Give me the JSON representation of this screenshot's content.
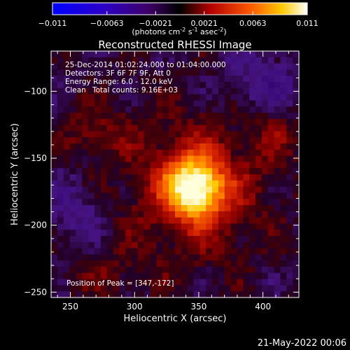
{
  "chart_data": {
    "type": "heatmap",
    "title": "Reconstructed RHESSI Image",
    "xlabel": "Heliocentric X (arcsec)",
    "ylabel": "Heliocentric Y (arcsec)",
    "xlim": [
      235,
      428
    ],
    "ylim": [
      -254,
      -70
    ],
    "x_ticks": [
      250,
      300,
      350,
      400
    ],
    "y_ticks": [
      -100,
      -150,
      -200,
      -250
    ],
    "peak_location": [
      347,
      -172
    ],
    "colorbar": {
      "range": [
        -0.011,
        0.011
      ],
      "tick_values": [
        -0.011,
        -0.0063,
        -0.0021,
        0.0021,
        0.0063,
        0.011
      ],
      "tick_labels": [
        "-0.011",
        "-0.0063",
        "-0.0021",
        "0.0021",
        "0.0063",
        "0.011"
      ],
      "unit_label_parts": [
        "(photons cm",
        "-2",
        " s",
        "-1",
        " asec",
        "-2",
        ")"
      ]
    },
    "grid": false,
    "annotations": {
      "time_range": "25-Dec-2014 01:02:24.000 to 01:04:00.000",
      "detectors": "Detectors: 3F 6F 7F 9F, Att 0",
      "energy_range": "Energy Range: 6.0 - 12.0 keV",
      "algorithm": "Clean",
      "total_counts": "Total counts: 9.16E+03",
      "peak_position": "Position of Peak = [347,-172]"
    }
  },
  "footer": {
    "date": "21-May-2022 00:06"
  },
  "colors": {
    "background": "#000000",
    "text": "#ffffff"
  }
}
